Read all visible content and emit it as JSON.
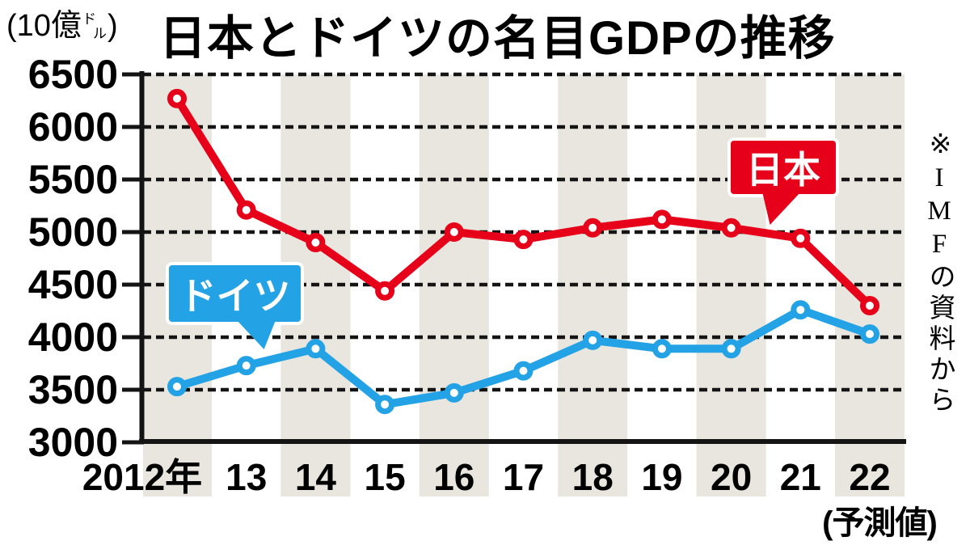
{
  "chart_data": {
    "type": "line",
    "title": "日本とドイツの名目GDPの推移",
    "unit_label": "(10億ドル)",
    "unit_parts": {
      "prefix": "(10億",
      "small_top": "ド",
      "small_bottom": "ル",
      "suffix": ")"
    },
    "source_note": "※IMFの資料から",
    "x_axis": {
      "categories": [
        "2012年",
        "13",
        "14",
        "15",
        "16",
        "17",
        "18",
        "19",
        "20",
        "21",
        "22"
      ],
      "footnote": "(予測値)",
      "shaded_band_indices": [
        0,
        2,
        4,
        6,
        8,
        10
      ]
    },
    "y_axis": {
      "ticks": [
        6500,
        6000,
        5500,
        5000,
        4500,
        4000,
        3500,
        3000
      ],
      "min": 3000,
      "max": 6500,
      "grid": "dashed"
    },
    "series": [
      {
        "name": "日本",
        "color": "#e60019",
        "values": [
          6270,
          5210,
          4900,
          4440,
          5000,
          4930,
          5040,
          5120,
          5040,
          4940,
          4300
        ]
      },
      {
        "name": "ドイツ",
        "color": "#23a2e6",
        "values": [
          3530,
          3730,
          3890,
          3360,
          3470,
          3680,
          3970,
          3890,
          3890,
          4260,
          4030
        ]
      }
    ],
    "legend_position": "callout-bubbles-on-lines",
    "colors": {
      "band": "#e9e6df",
      "axis": "#141414",
      "background": "#ffffff"
    }
  }
}
